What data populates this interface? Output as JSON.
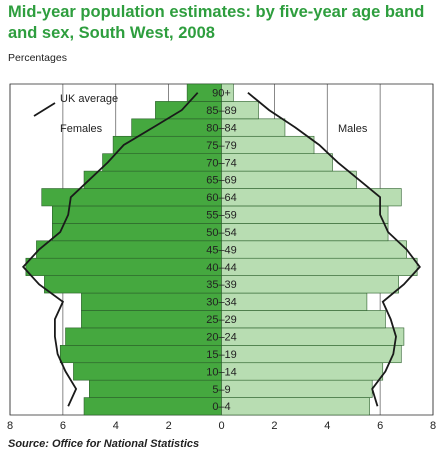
{
  "chart_data": {
    "type": "pyramid",
    "title": "Mid-year population estimates: by five-year age band and sex, South West, 2008",
    "subtitle": "Percentages",
    "source": "Source: Office for National Statistics",
    "categories": [
      "0–4",
      "5–9",
      "10–14",
      "15–19",
      "20–24",
      "25–29",
      "30–34",
      "35–39",
      "40–44",
      "45–49",
      "50–54",
      "55–59",
      "60–64",
      "65–69",
      "70–74",
      "75–79",
      "80–84",
      "85–89",
      "90+"
    ],
    "series": [
      {
        "name": "Females",
        "color": "#45a83f",
        "side": "left",
        "values": [
          5.2,
          5.0,
          5.6,
          6.1,
          5.9,
          5.3,
          5.3,
          6.7,
          7.4,
          7.0,
          6.4,
          6.4,
          6.8,
          5.2,
          4.5,
          4.1,
          3.4,
          2.5,
          1.3
        ]
      },
      {
        "name": "Males",
        "color": "#b8ddb2",
        "side": "right",
        "values": [
          5.6,
          5.7,
          6.1,
          6.8,
          6.9,
          6.2,
          5.5,
          6.7,
          7.4,
          7.0,
          6.3,
          6.3,
          6.8,
          5.1,
          4.2,
          3.5,
          2.4,
          1.4,
          0.45
        ]
      }
    ],
    "average": {
      "name": "UK average",
      "color": "#1a1a1a",
      "females": [
        5.8,
        5.5,
        5.9,
        6.2,
        6.3,
        6.3,
        6.0,
        6.9,
        7.5,
        6.9,
        6.1,
        5.8,
        5.7,
        5.0,
        4.3,
        3.7,
        2.6,
        1.5,
        0.9
      ],
      "males": [
        5.9,
        5.7,
        6.2,
        6.5,
        6.6,
        6.4,
        6.1,
        6.9,
        7.5,
        7.0,
        6.3,
        6.0,
        6.0,
        5.2,
        4.4,
        3.7,
        2.8,
        1.8,
        1.0
      ]
    },
    "xlim": [
      -8,
      8
    ],
    "xticks": [
      {
        "value": -8,
        "label": "8"
      },
      {
        "value": -6,
        "label": "6"
      },
      {
        "value": -4,
        "label": "4"
      },
      {
        "value": -2,
        "label": "2"
      },
      0,
      2,
      4,
      6,
      8
    ],
    "grid": true
  }
}
